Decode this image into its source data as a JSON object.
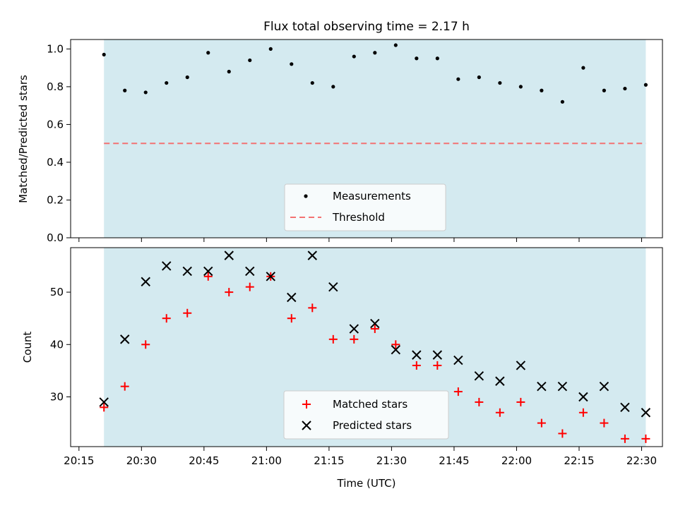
{
  "title": "Flux total observing time = 2.17 h",
  "xlabel": "Time (UTC)",
  "x_ticks": [
    "20:15",
    "20:30",
    "20:45",
    "21:00",
    "21:15",
    "21:30",
    "21:45",
    "22:00",
    "22:15",
    "22:30"
  ],
  "colors": {
    "shade": "#d4eaf0",
    "measurement": "#000000",
    "threshold": "#f37272",
    "matched": "#ff0000",
    "predicted": "#000000"
  },
  "chart_data": [
    {
      "type": "scatter",
      "ylabel": "Matched/Predicted stars",
      "xlim": [
        "20:13",
        "22:35"
      ],
      "ylim": [
        0,
        1.05
      ],
      "y_ticks": [
        "0.0",
        "0.2",
        "0.4",
        "0.6",
        "0.8",
        "1.0"
      ],
      "shaded_span": [
        "20:21",
        "22:31"
      ],
      "legend": {
        "placement": "lower-center",
        "items": [
          "Measurements",
          "Threshold"
        ]
      },
      "series": [
        {
          "name": "Measurements",
          "marker": "dot",
          "x": [
            "20:21",
            "20:26",
            "20:31",
            "20:36",
            "20:41",
            "20:46",
            "20:51",
            "20:56",
            "21:01",
            "21:06",
            "21:11",
            "21:16",
            "21:21",
            "21:26",
            "21:31",
            "21:36",
            "21:41",
            "21:46",
            "21:51",
            "21:56",
            "22:01",
            "22:06",
            "22:11",
            "22:16",
            "22:21",
            "22:26",
            "22:31"
          ],
          "y": [
            0.97,
            0.78,
            0.77,
            0.82,
            0.85,
            0.98,
            0.88,
            0.94,
            1.0,
            0.92,
            0.82,
            0.8,
            0.96,
            0.98,
            1.02,
            0.95,
            0.95,
            0.84,
            0.85,
            0.82,
            0.8,
            0.78,
            0.72,
            0.9,
            0.78,
            0.79,
            0.81
          ]
        },
        {
          "name": "Threshold",
          "style": "dashed-line",
          "x": [
            "20:21",
            "22:31"
          ],
          "y": [
            0.5,
            0.5
          ]
        }
      ]
    },
    {
      "type": "scatter",
      "ylabel": "Count",
      "xlim": [
        "20:13",
        "22:35"
      ],
      "ylim": [
        20.5,
        58.5
      ],
      "y_ticks": [
        "30",
        "40",
        "50"
      ],
      "shaded_span": [
        "20:21",
        "22:31"
      ],
      "legend": {
        "placement": "lower-center",
        "items": [
          "Matched stars",
          "Predicted stars"
        ]
      },
      "series": [
        {
          "name": "Matched stars",
          "marker": "plus",
          "x": [
            "20:21",
            "20:26",
            "20:31",
            "20:36",
            "20:41",
            "20:46",
            "20:51",
            "20:56",
            "21:01",
            "21:06",
            "21:11",
            "21:16",
            "21:21",
            "21:26",
            "21:31",
            "21:36",
            "21:41",
            "21:46",
            "21:51",
            "21:56",
            "22:01",
            "22:06",
            "22:11",
            "22:16",
            "22:21",
            "22:26",
            "22:31"
          ],
          "y": [
            28,
            32,
            40,
            45,
            46,
            53,
            50,
            51,
            53,
            45,
            47,
            41,
            41,
            43,
            40,
            36,
            36,
            31,
            29,
            27,
            29,
            25,
            23,
            27,
            25,
            22,
            22
          ]
        },
        {
          "name": "Predicted stars",
          "marker": "x",
          "x": [
            "20:21",
            "20:26",
            "20:31",
            "20:36",
            "20:41",
            "20:46",
            "20:51",
            "20:56",
            "21:01",
            "21:06",
            "21:11",
            "21:16",
            "21:21",
            "21:26",
            "21:31",
            "21:36",
            "21:41",
            "21:46",
            "21:51",
            "21:56",
            "22:01",
            "22:06",
            "22:11",
            "22:16",
            "22:21",
            "22:26",
            "22:31"
          ],
          "y": [
            29,
            41,
            52,
            55,
            54,
            54,
            57,
            54,
            53,
            49,
            57,
            51,
            43,
            44,
            39,
            38,
            38,
            37,
            34,
            33,
            36,
            32,
            32,
            30,
            32,
            28,
            27
          ]
        }
      ]
    }
  ]
}
